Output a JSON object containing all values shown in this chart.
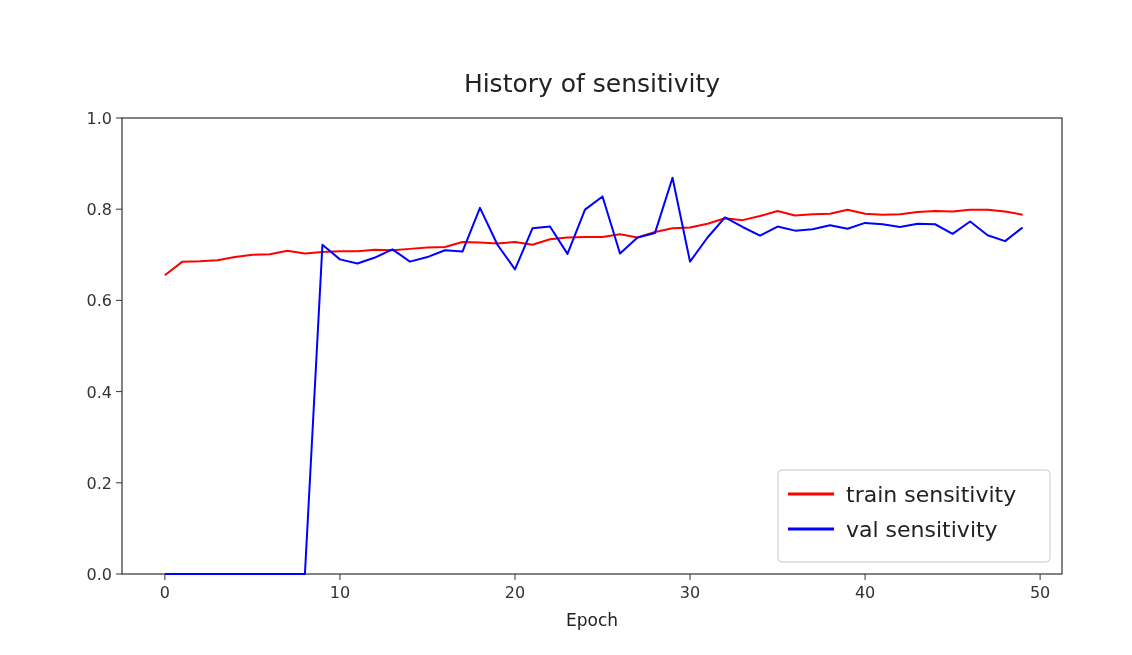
{
  "chart_data": {
    "type": "line",
    "title": "History of sensitivity",
    "xlabel": "Epoch",
    "x": [
      0,
      1,
      2,
      3,
      4,
      5,
      6,
      7,
      8,
      9,
      10,
      11,
      12,
      13,
      14,
      15,
      16,
      17,
      18,
      19,
      20,
      21,
      22,
      23,
      24,
      25,
      26,
      27,
      28,
      29,
      30,
      31,
      32,
      33,
      34,
      35,
      36,
      37,
      38,
      39,
      40,
      41,
      42,
      43,
      44,
      45,
      46,
      47,
      48,
      49
    ],
    "series": [
      {
        "name": "train sensitivity",
        "color": "#ff0000",
        "values": [
          0.655,
          0.685,
          0.686,
          0.688,
          0.695,
          0.7,
          0.701,
          0.709,
          0.703,
          0.706,
          0.708,
          0.708,
          0.711,
          0.71,
          0.713,
          0.716,
          0.717,
          0.728,
          0.727,
          0.725,
          0.728,
          0.722,
          0.734,
          0.738,
          0.739,
          0.739,
          0.745,
          0.738,
          0.75,
          0.758,
          0.76,
          0.768,
          0.78,
          0.776,
          0.785,
          0.796,
          0.786,
          0.789,
          0.79,
          0.799,
          0.79,
          0.788,
          0.789,
          0.794,
          0.796,
          0.795,
          0.799,
          0.799,
          0.795,
          0.788
        ]
      },
      {
        "name": "val sensitivity",
        "color": "#0000ff",
        "values": [
          0,
          0,
          0,
          0,
          0,
          0,
          0,
          0,
          0,
          0.722,
          0.69,
          0.681,
          0.694,
          0.712,
          0.685,
          0.695,
          0.71,
          0.707,
          0.803,
          0.722,
          0.668,
          0.758,
          0.762,
          0.702,
          0.799,
          0.828,
          0.703,
          0.738,
          0.748,
          0.869,
          0.685,
          0.738,
          0.782,
          0.761,
          0.742,
          0.762,
          0.753,
          0.756,
          0.765,
          0.757,
          0.77,
          0.767,
          0.761,
          0.768,
          0.767,
          0.746,
          0.773,
          0.743,
          0.73,
          0.76
        ]
      }
    ],
    "xlim": [
      -2.45,
      51.25
    ],
    "xticks": [
      0,
      10,
      20,
      30,
      40,
      50
    ],
    "ylim": [
      0,
      1
    ],
    "yticks": [
      {
        "value": 0,
        "label": "0.0"
      },
      {
        "value": 0.2,
        "label": "0.2"
      },
      {
        "value": 0.4,
        "label": "0.4"
      },
      {
        "value": 0.6,
        "label": "0.6"
      },
      {
        "value": 0.8,
        "label": "0.8"
      },
      {
        "value": 1,
        "label": "1.0"
      }
    ],
    "grid": false,
    "legend": "bottom right",
    "line_style": "solid"
  }
}
